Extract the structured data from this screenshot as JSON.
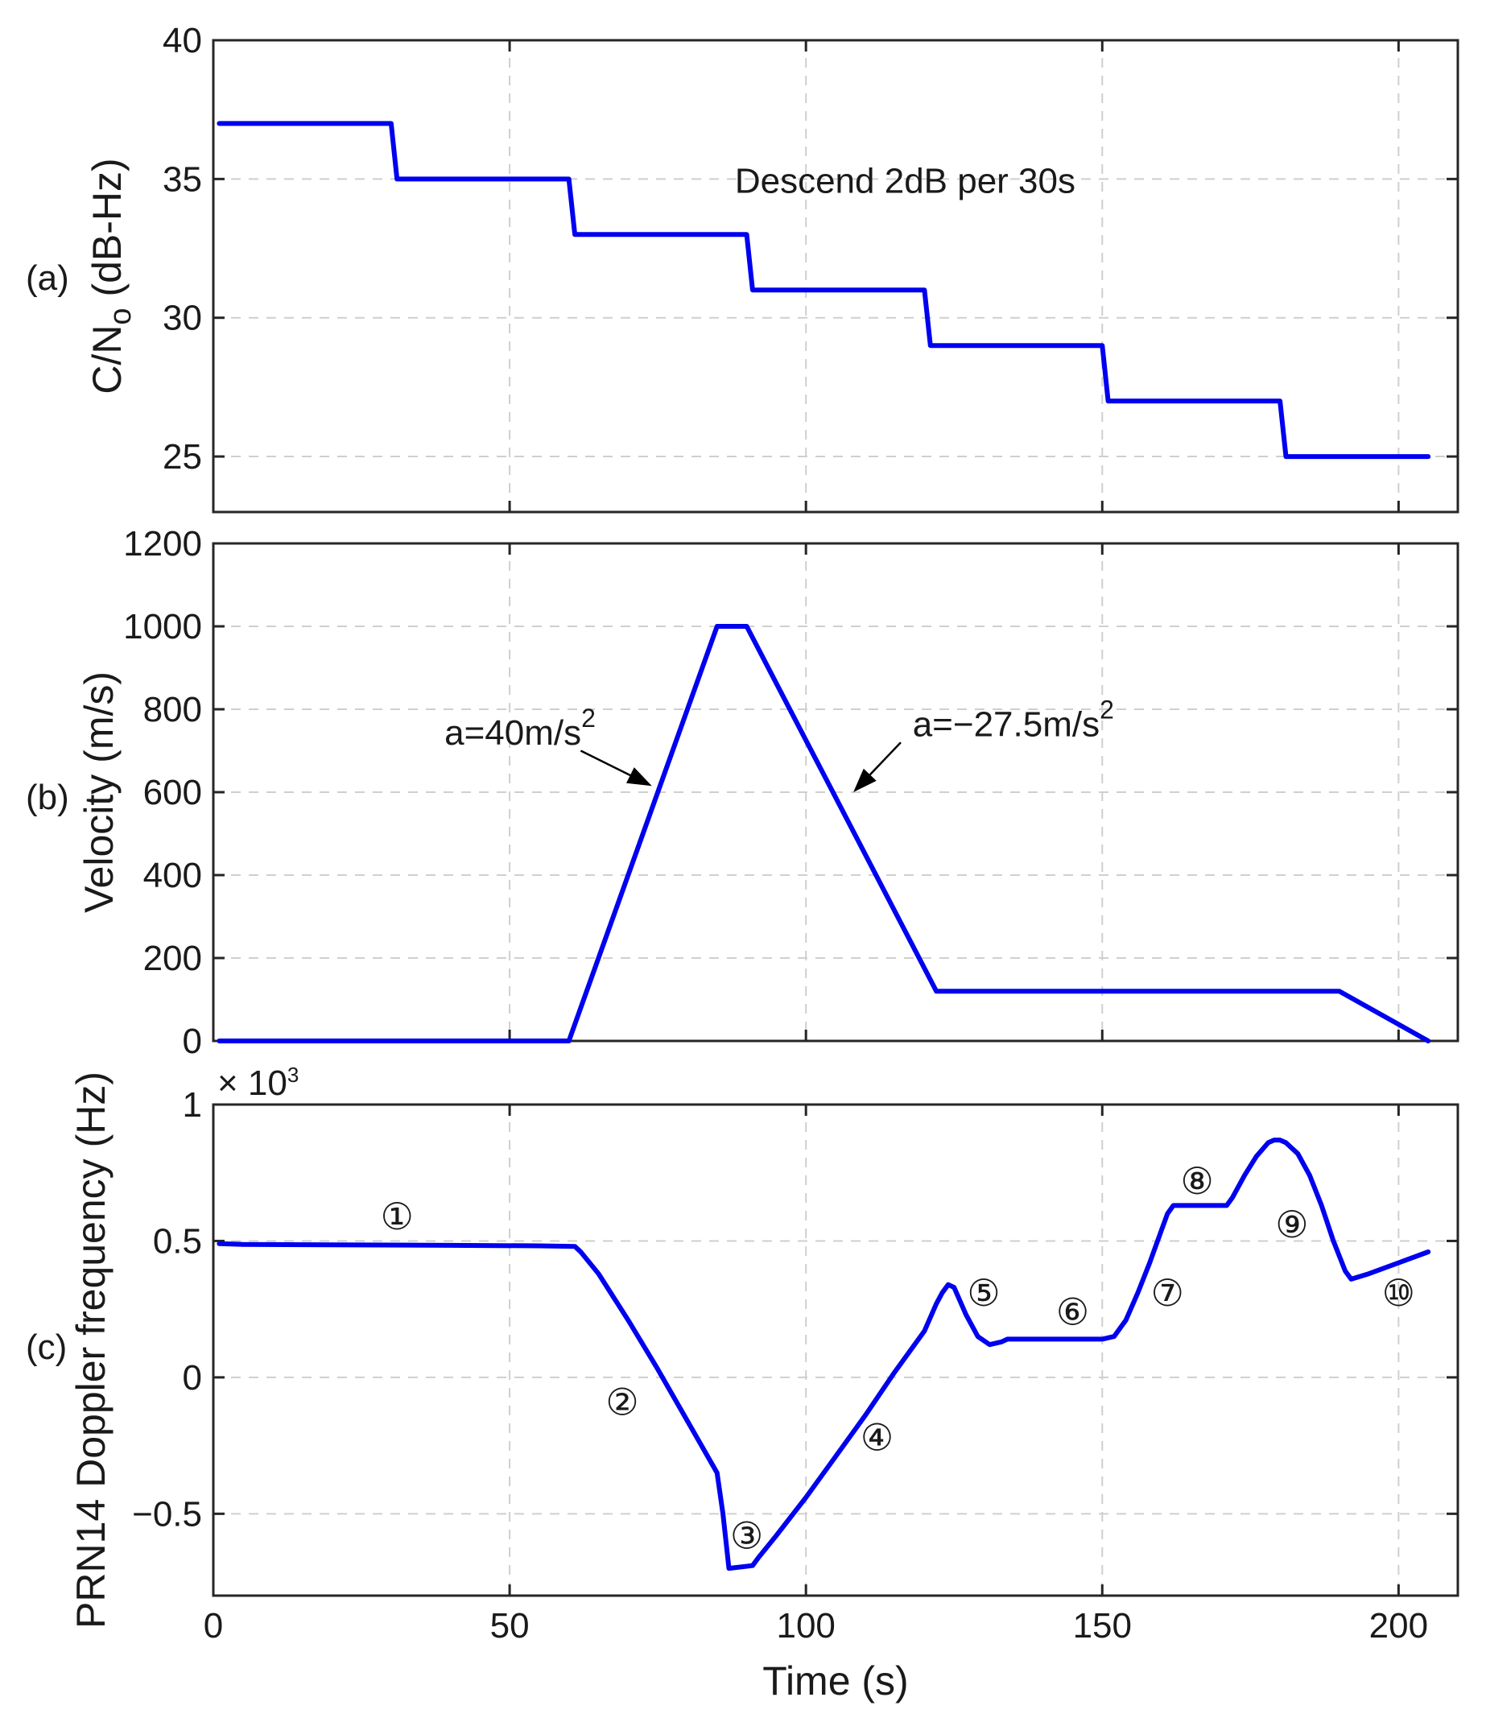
{
  "chart_data": [
    {
      "panel_label": "(a)",
      "type": "line",
      "ylabel_main": "C/N",
      "ylabel_sub": "o",
      "ylabel_unit": " (dB-Hz)",
      "xlim": [
        0,
        210
      ],
      "ylim": [
        23,
        40
      ],
      "yticks": [
        25,
        30,
        35,
        40
      ],
      "ytick_labels": [
        "25",
        "30",
        "35",
        "40"
      ],
      "xticks": [
        0,
        50,
        100,
        150,
        200
      ],
      "grid": true,
      "series": [
        {
          "name": "C/No",
          "color": "#0000f0",
          "x": [
            1,
            30,
            31,
            60,
            61,
            90,
            91,
            120,
            121,
            150,
            151,
            180,
            181,
            205
          ],
          "y": [
            37,
            37,
            35,
            35,
            33,
            33,
            31,
            31,
            29,
            29,
            27,
            27,
            25,
            25
          ]
        }
      ],
      "annotations": [
        {
          "text": "Descend 2dB per 30s",
          "x": 88,
          "y": 34.5
        }
      ]
    },
    {
      "panel_label": "(b)",
      "type": "line",
      "ylabel": "Velocity (m/s)",
      "xlim": [
        0,
        210
      ],
      "ylim": [
        0,
        1200
      ],
      "yticks": [
        0,
        200,
        400,
        600,
        800,
        1000,
        1200
      ],
      "ytick_labels": [
        "0",
        "200",
        "400",
        "600",
        "800",
        "1000",
        "1200"
      ],
      "xticks": [
        0,
        50,
        100,
        150,
        200
      ],
      "grid": true,
      "series": [
        {
          "name": "Velocity",
          "color": "#0000f0",
          "x": [
            1,
            60,
            85,
            90,
            122,
            190,
            205
          ],
          "y": [
            0,
            0,
            1000,
            1000,
            120,
            120,
            0
          ]
        }
      ],
      "annotations": [
        {
          "text_main": "a=40m/s",
          "text_sup": "2",
          "text_x": 39,
          "text_y": 715,
          "arrow_from": [
            62,
            700
          ],
          "arrow_to": [
            74,
            615
          ]
        },
        {
          "text_main": "a=−27.5m/s",
          "text_sup": "2",
          "text_x": 118,
          "text_y": 735,
          "arrow_from": [
            116,
            720
          ],
          "arrow_to": [
            108,
            600
          ]
        }
      ]
    },
    {
      "panel_label": "(c)",
      "type": "line",
      "ylabel": "PRN14 Doppler frequency (Hz)",
      "multiplier_prefix": "× 10",
      "multiplier_exp": "3",
      "xlabel": "Time (s)",
      "xlim": [
        0,
        210
      ],
      "ylim": [
        -0.8,
        1.0
      ],
      "yticks": [
        -0.5,
        0,
        0.5,
        1
      ],
      "ytick_labels": [
        "−0.5",
        "0",
        "0.5",
        "1"
      ],
      "xticks": [
        0,
        50,
        100,
        150,
        200
      ],
      "xtick_labels": [
        "0",
        "50",
        "100",
        "150",
        "200"
      ],
      "grid": true,
      "series": [
        {
          "name": "PRN14 Doppler",
          "color": "#0000f0",
          "x": [
            1,
            5,
            20,
            40,
            55,
            61,
            62,
            65,
            70,
            75,
            80,
            85,
            86,
            87,
            91,
            92,
            95,
            100,
            105,
            110,
            115,
            120,
            121,
            122,
            123,
            124,
            125,
            127,
            129,
            131,
            133,
            134,
            140,
            145,
            150,
            152,
            154,
            156,
            158,
            160,
            161,
            162,
            165,
            170,
            171,
            172,
            174,
            176,
            178,
            179,
            180,
            181,
            183,
            185,
            187,
            189,
            191,
            192,
            195,
            200,
            205
          ],
          "y": [
            0.49,
            0.487,
            0.486,
            0.484,
            0.482,
            0.48,
            0.46,
            0.38,
            0.21,
            0.03,
            -0.16,
            -0.35,
            -0.5,
            -0.7,
            -0.69,
            -0.66,
            -0.58,
            -0.44,
            -0.29,
            -0.14,
            0.02,
            0.17,
            0.22,
            0.27,
            0.31,
            0.34,
            0.33,
            0.23,
            0.15,
            0.12,
            0.13,
            0.14,
            0.14,
            0.14,
            0.14,
            0.15,
            0.21,
            0.31,
            0.42,
            0.54,
            0.6,
            0.63,
            0.63,
            0.63,
            0.63,
            0.66,
            0.74,
            0.81,
            0.86,
            0.87,
            0.87,
            0.86,
            0.82,
            0.74,
            0.63,
            0.5,
            0.39,
            0.36,
            0.38,
            0.42,
            0.46
          ]
        }
      ],
      "markers": [
        {
          "label": "①",
          "x": 31,
          "y": 0.59
        },
        {
          "label": "②",
          "x": 69,
          "y": -0.09
        },
        {
          "label": "③",
          "x": 90,
          "y": -0.58
        },
        {
          "label": "④",
          "x": 112,
          "y": -0.22
        },
        {
          "label": "⑤",
          "x": 130,
          "y": 0.31
        },
        {
          "label": "⑥",
          "x": 145,
          "y": 0.24
        },
        {
          "label": "⑦",
          "x": 161,
          "y": 0.31
        },
        {
          "label": "⑧",
          "x": 166,
          "y": 0.72
        },
        {
          "label": "⑨",
          "x": 182,
          "y": 0.56
        },
        {
          "label": "⑩",
          "x": 200,
          "y": 0.31
        }
      ]
    }
  ]
}
